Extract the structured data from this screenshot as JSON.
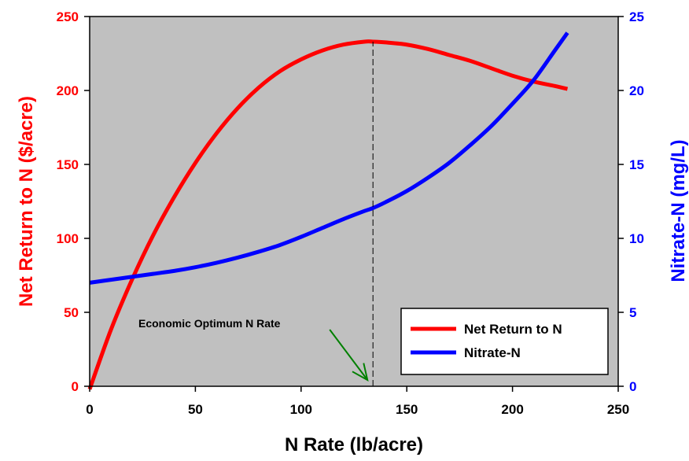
{
  "chart_data": {
    "type": "line",
    "title": "",
    "xlabel": "N Rate (lb/acre)",
    "ylabel_left": "Net Return to N ($/acre)",
    "ylabel_right": "Nitrate-N (mg/L)",
    "xlim": [
      0,
      250
    ],
    "ylim_left": [
      0,
      250
    ],
    "ylim_right": [
      0,
      25
    ],
    "x_ticks": [
      0,
      50,
      100,
      150,
      200,
      250
    ],
    "y_left_ticks": [
      0,
      50,
      100,
      150,
      200,
      250
    ],
    "y_right_ticks": [
      0,
      5,
      10,
      15,
      20,
      25
    ],
    "grid": false,
    "legend_position": "bottom-right",
    "colors": {
      "net_return": "#ff0000",
      "nitrate": "#0000ff",
      "plot_background": "#c0c0c0",
      "annotation_arrow": "#008000"
    },
    "series": [
      {
        "name": "Net Return to N",
        "axis": "left",
        "x": [
          0,
          10,
          20,
          30,
          40,
          50,
          60,
          70,
          80,
          90,
          100,
          110,
          120,
          130,
          134,
          140,
          150,
          160,
          170,
          180,
          190,
          200,
          210,
          220,
          226
        ],
        "y": [
          -2,
          38,
          72,
          102,
          128,
          151,
          171,
          188,
          202,
          213,
          221,
          227,
          231,
          233,
          233,
          232.5,
          231,
          228,
          224,
          220,
          215,
          210,
          206,
          203,
          201
        ]
      },
      {
        "name": "Nitrate-N",
        "axis": "right",
        "x": [
          0,
          10,
          20,
          30,
          40,
          50,
          60,
          70,
          80,
          90,
          100,
          110,
          120,
          130,
          134,
          140,
          150,
          160,
          170,
          180,
          190,
          200,
          210,
          220,
          226
        ],
        "y": [
          7.0,
          7.2,
          7.4,
          7.6,
          7.8,
          8.05,
          8.35,
          8.7,
          9.1,
          9.55,
          10.1,
          10.7,
          11.3,
          11.85,
          12.05,
          12.45,
          13.2,
          14.1,
          15.1,
          16.3,
          17.6,
          19.1,
          20.7,
          22.7,
          23.9
        ]
      }
    ],
    "annotations": {
      "optimum_label": "Economic Optimum N Rate",
      "optimum_x": 134
    }
  }
}
